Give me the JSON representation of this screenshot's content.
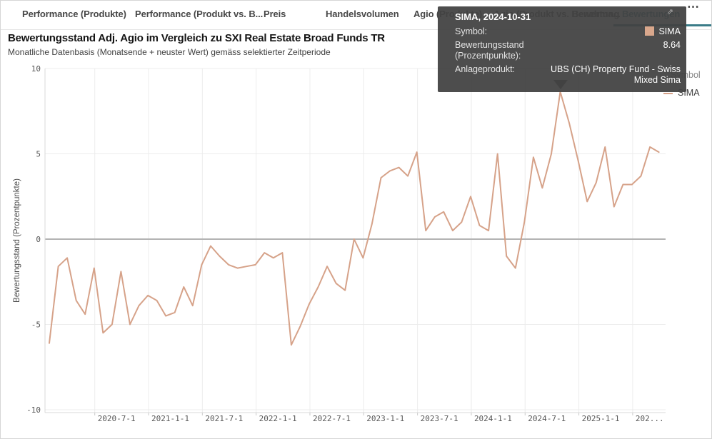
{
  "tabs": {
    "items": [
      {
        "label": "Performance (Produkte)",
        "active": false
      },
      {
        "label": "Performance (Produkt vs. B...",
        "active": false
      },
      {
        "label": "Preis",
        "active": false
      },
      {
        "label": "Handelsvolumen",
        "active": false
      },
      {
        "label": "Agio (Produkte)",
        "active": false
      },
      {
        "label": "Agio (Produkt vs. Benchma...",
        "active": false
      },
      {
        "label": "Bewertung",
        "active": false
      },
      {
        "label": "Bewertungen",
        "active": true
      }
    ],
    "overflow_icon": "⋯"
  },
  "tooltip": {
    "title": "SIMA, 2024-10-31",
    "symbol_label": "Symbol:",
    "symbol_value": "SIMA",
    "symbol_color": "#d9a78c",
    "measure_label": "Bewertungsstand (Prozentpunkte):",
    "measure_value": "8.64",
    "product_label": "Anlageprodukt:",
    "product_value": "UBS (CH) Property Fund - Swiss Mixed Sima",
    "expand_icon": "⇗"
  },
  "legend": {
    "title": "Symbol",
    "series_label": "SIMA"
  },
  "colors": {
    "accent_teal": "#3a7c88",
    "series_line": "#d6a289",
    "zero_line": "#b3b3b3",
    "grid_line": "#ececec",
    "axis_line": "#d9d9d9",
    "tick_text": "#565656",
    "tooltip_bg": "#424242"
  },
  "chart_data": {
    "type": "line",
    "title": "Bewertungsstand Adj. Agio im Vergleich zu SXI Real Estate Broad Funds TR",
    "subtitle": "Monatliche Datenbasis (Monatsende + neuster Wert) gemäss selektierter Zeitperiode",
    "ylabel": "Bewertungsstand (Prozentpunkte)",
    "xlabel": "",
    "ylim": [
      -10,
      10
    ],
    "yticks": [
      10,
      5,
      0,
      -5,
      -10
    ],
    "xticklabels": [
      "2020-7-1",
      "2021-1-1",
      "2021-7-1",
      "2022-1-1",
      "2022-7-1",
      "2023-1-1",
      "2023-7-1",
      "2024-1-1",
      "2024-7-1",
      "2025-1-1",
      "202..."
    ],
    "grid": true,
    "legend_position": "right",
    "series": [
      {
        "name": "SIMA",
        "color": "#d6a289",
        "months": [
          "2020-01",
          "2020-02",
          "2020-03",
          "2020-04",
          "2020-05",
          "2020-06",
          "2020-07",
          "2020-08",
          "2020-09",
          "2020-10",
          "2020-11",
          "2020-12",
          "2021-01",
          "2021-02",
          "2021-03",
          "2021-04",
          "2021-05",
          "2021-06",
          "2021-07",
          "2021-08",
          "2021-09",
          "2021-10",
          "2021-11",
          "2021-12",
          "2022-01",
          "2022-02",
          "2022-03",
          "2022-04",
          "2022-05",
          "2022-06",
          "2022-07",
          "2022-08",
          "2022-09",
          "2022-10",
          "2022-11",
          "2022-12",
          "2023-01",
          "2023-02",
          "2023-03",
          "2023-04",
          "2023-05",
          "2023-06",
          "2023-07",
          "2023-08",
          "2023-09",
          "2023-10",
          "2023-11",
          "2023-12",
          "2024-01",
          "2024-02",
          "2024-03",
          "2024-04",
          "2024-05",
          "2024-06",
          "2024-07",
          "2024-08",
          "2024-09",
          "2024-10",
          "2024-11",
          "2024-12",
          "2025-01",
          "2025-02",
          "2025-03",
          "2025-04",
          "2025-05",
          "2025-06",
          "2025-07",
          "2025-08",
          "2025-09"
        ],
        "values": [
          -6.1,
          -1.6,
          -1.1,
          -3.6,
          -4.4,
          -1.7,
          -5.5,
          -5.0,
          -1.9,
          -5.0,
          -3.9,
          -3.3,
          -3.6,
          -4.5,
          -4.3,
          -2.8,
          -3.9,
          -1.5,
          -0.4,
          -1.0,
          -1.5,
          -1.7,
          -1.6,
          -1.5,
          -0.8,
          -1.1,
          -0.8,
          -6.2,
          -5.1,
          -3.8,
          -2.8,
          -1.6,
          -2.6,
          -3.0,
          0.0,
          -1.1,
          0.9,
          3.6,
          4.0,
          4.2,
          3.7,
          5.1,
          0.5,
          1.3,
          1.6,
          0.5,
          1.0,
          2.5,
          0.8,
          0.5,
          5.0,
          -1.0,
          -1.7,
          1.0,
          4.8,
          3.0,
          5.0,
          8.64,
          6.8,
          4.6,
          2.2,
          3.3,
          5.4,
          1.9,
          3.2,
          3.2,
          3.7,
          5.4,
          5.1
        ]
      }
    ],
    "highlight": {
      "series": "SIMA",
      "month": "2024-10",
      "date": "2024-10-31",
      "value": 8.64
    }
  }
}
